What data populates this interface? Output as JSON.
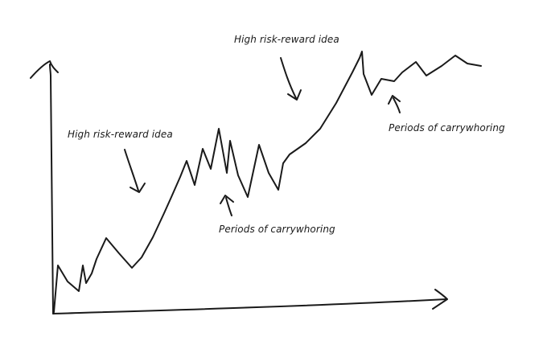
{
  "annotations": {
    "high_risk_left": "High risk-reward idea",
    "high_risk_top": "High risk-reward idea",
    "carry_middle": "Periods of carrywhoring",
    "carry_right": "Periods of carrywhoring"
  },
  "style": {
    "ink_color": "#1a1a1a",
    "background": "#ffffff"
  }
}
